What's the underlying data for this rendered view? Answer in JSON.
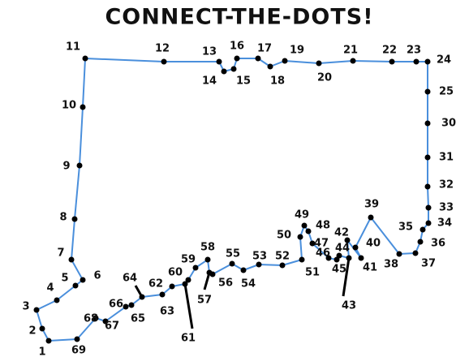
{
  "title": "CONNECT-THE-DOTS!",
  "dots": [
    "1",
    "2",
    "3",
    "4",
    "5",
    "6",
    "7",
    "8",
    "9",
    "10",
    "11",
    "12",
    "13",
    "14",
    "15",
    "16",
    "17",
    "18",
    "19",
    "20",
    "21",
    "22",
    "23",
    "24",
    "25",
    "30",
    "31",
    "32",
    "33",
    "34",
    "35",
    "36",
    "37",
    "38",
    "39",
    "40",
    "41",
    "42",
    "43",
    "44",
    "45",
    "46",
    "47",
    "48",
    "49",
    "50",
    "51",
    "52",
    "53",
    "54",
    "55",
    "56",
    "57",
    "58",
    "59",
    "60",
    "61",
    "62",
    "63",
    "64",
    "65",
    "66",
    "67",
    "68",
    "69"
  ]
}
